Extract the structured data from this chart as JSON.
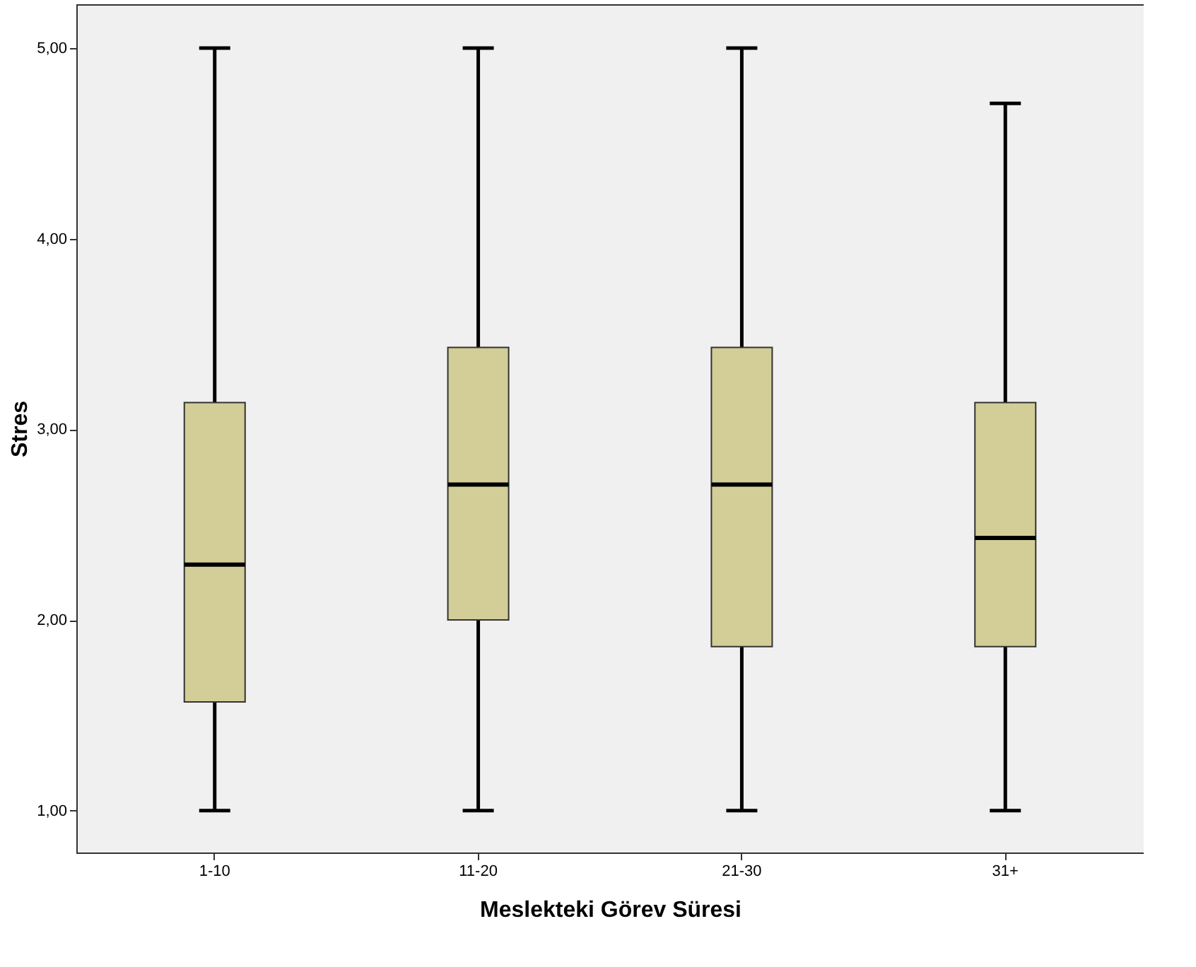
{
  "chart_data": {
    "type": "box",
    "xlabel": "Meslekteki Görev Süresi",
    "ylabel": "Stres",
    "categories": [
      "1-10",
      "11-20",
      "21-30",
      "31+"
    ],
    "series": [
      {
        "color": "#d3ce97",
        "boxes": [
          {
            "low": 1.0,
            "q1": 1.57,
            "median": 2.29,
            "q3": 3.14,
            "high": 5.0
          },
          {
            "low": 1.0,
            "q1": 2.0,
            "median": 2.71,
            "q3": 3.43,
            "high": 5.0
          },
          {
            "low": 1.0,
            "q1": 1.86,
            "median": 2.71,
            "q3": 3.43,
            "high": 5.0
          },
          {
            "low": 1.0,
            "q1": 1.86,
            "median": 2.43,
            "q3": 3.14,
            "high": 4.71
          }
        ]
      }
    ],
    "ylim": [
      0.78,
      5.23
    ],
    "yticks": [
      {
        "value": 1,
        "label": "1,00"
      },
      {
        "value": 2,
        "label": "2,00"
      },
      {
        "value": 3,
        "label": "3,00"
      },
      {
        "value": 4,
        "label": "4,00"
      },
      {
        "value": 5,
        "label": "5,00"
      }
    ],
    "grid": false
  }
}
